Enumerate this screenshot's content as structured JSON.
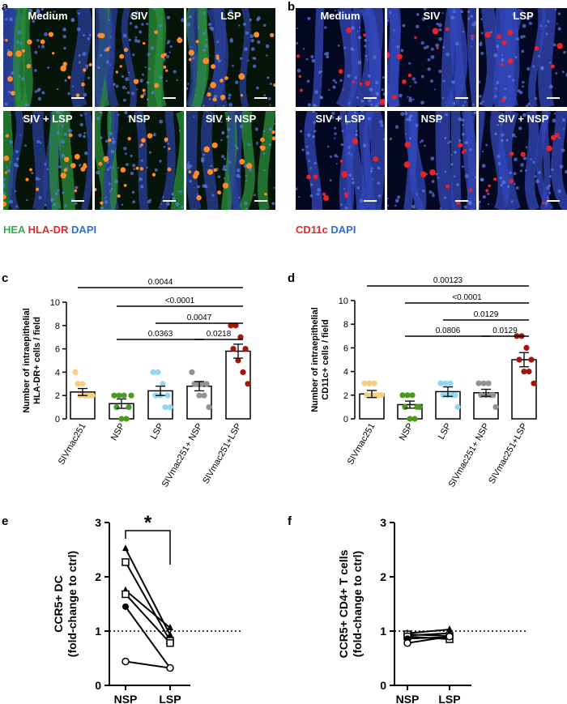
{
  "panels": {
    "a": {
      "letter": "a",
      "images": [
        {
          "label": "Medium"
        },
        {
          "label": "SIV"
        },
        {
          "label": "LSP"
        },
        {
          "label": "SIV + LSP"
        },
        {
          "label": "NSP"
        },
        {
          "label": "SIV + NSP"
        }
      ],
      "legend": [
        {
          "text": "HEA",
          "color": "#2bb34a"
        },
        {
          "text": "HLA-DR",
          "color": "#e8232b"
        },
        {
          "text": "DAPI",
          "color": "#2c6fd6"
        }
      ]
    },
    "b": {
      "letter": "b",
      "images": [
        {
          "label": "Medium"
        },
        {
          "label": "SIV"
        },
        {
          "label": "LSP"
        },
        {
          "label": "SIV + LSP"
        },
        {
          "label": "NSP"
        },
        {
          "label": "SIV + NSP"
        }
      ],
      "legend": [
        {
          "text": "CD11c",
          "color": "#e8232b"
        },
        {
          "text": "DAPI",
          "color": "#2c6fd6"
        }
      ]
    },
    "c": {
      "letter": "c"
    },
    "d": {
      "letter": "d"
    },
    "e": {
      "letter": "e"
    },
    "f": {
      "letter": "f"
    }
  },
  "chart_data": [
    {
      "id": "c",
      "type": "bar",
      "categories": [
        "SIVmac251",
        "NSP",
        "LSP",
        "SIVmac251+ NSP",
        "SIVmac251+LSP"
      ],
      "values": [
        2.3,
        1.3,
        2.4,
        2.8,
        5.8
      ],
      "sem": [
        0.3,
        0.4,
        0.4,
        0.4,
        0.6
      ],
      "points": [
        [
          4,
          2,
          2,
          2,
          3,
          3,
          2,
          2
        ],
        [
          2,
          2,
          2,
          1,
          1,
          0,
          0,
          2
        ],
        [
          4,
          4,
          3,
          2,
          2,
          2,
          1,
          1
        ],
        [
          4,
          3,
          3,
          3,
          3,
          2,
          2,
          1
        ],
        [
          8,
          8,
          7,
          6,
          6,
          5,
          4,
          3
        ]
      ],
      "point_colors": [
        "#f6cf7e",
        "#4a9a1e",
        "#8fd7f4",
        "#939393",
        "#a4160c"
      ],
      "ylabel": "Number of intraepithelial\nHLA-DR+ cells / field",
      "yticks": [
        0,
        2,
        4,
        6,
        8,
        10
      ],
      "ylim": [
        0,
        10
      ],
      "comparisons": [
        {
          "from": 0,
          "to": 4,
          "label": "0.0044"
        },
        {
          "from": 1,
          "to": 4,
          "label": "<0.0001"
        },
        {
          "from": 2,
          "to": 4,
          "label": "0.0047"
        },
        {
          "from": 1,
          "to": 3,
          "label": "0.0363"
        },
        {
          "from": 3,
          "to": 4,
          "label": "0.0218"
        }
      ]
    },
    {
      "id": "d",
      "type": "bar",
      "categories": [
        "SIVmac251",
        "NSP",
        "LSP",
        "SIVmac251+ NSP",
        "SIVmac251+LSP"
      ],
      "values": [
        2.1,
        1.2,
        2.3,
        2.2,
        5.0
      ],
      "sem": [
        0.3,
        0.3,
        0.4,
        0.3,
        0.6
      ],
      "points": [
        [
          3,
          3,
          3,
          2,
          2,
          2,
          2,
          2
        ],
        [
          2,
          2,
          2,
          1,
          1,
          0,
          0,
          1
        ],
        [
          3,
          3,
          3,
          2,
          2,
          2,
          2,
          1
        ],
        [
          3,
          3,
          3,
          2,
          2,
          2,
          2,
          1
        ],
        [
          7,
          7,
          6,
          5,
          5,
          4,
          4,
          3
        ]
      ],
      "point_colors": [
        "#f6cf7e",
        "#4a9a1e",
        "#8fd7f4",
        "#939393",
        "#a4160c"
      ],
      "ylabel": "Number of intraepithelial\nCD11c+ cells / field",
      "yticks": [
        0,
        2,
        4,
        6,
        8,
        10
      ],
      "ylim": [
        0,
        10
      ],
      "comparisons": [
        {
          "from": 0,
          "to": 4,
          "label": "0.00123"
        },
        {
          "from": 1,
          "to": 4,
          "label": "<0.0001"
        },
        {
          "from": 2,
          "to": 4,
          "label": "0.0129"
        },
        {
          "from": 1,
          "to": 3,
          "label": "0.0806"
        },
        {
          "from": 3,
          "to": 4,
          "label": "0.0129"
        }
      ]
    },
    {
      "id": "e",
      "type": "line",
      "categories": [
        "NSP",
        "LSP"
      ],
      "pairs": [
        {
          "marker": "triangle",
          "values": [
            2.52,
            0.93
          ]
        },
        {
          "marker": "square",
          "values": [
            2.27,
            0.82
          ]
        },
        {
          "marker": "triangle",
          "values": [
            1.75,
            1.06
          ]
        },
        {
          "marker": "square",
          "values": [
            1.68,
            0.78
          ]
        },
        {
          "marker": "circle-filled",
          "values": [
            1.45,
            0.32
          ]
        },
        {
          "marker": "circle-open",
          "values": [
            0.44,
            0.32
          ]
        }
      ],
      "ylabel": "CCR5+ DC\n(fold-change to ctrl)",
      "yticks": [
        0,
        1,
        2,
        3
      ],
      "ylim": [
        0,
        3
      ],
      "reference_line": 1,
      "significance": {
        "from": 0,
        "to": 1,
        "label": "*"
      }
    },
    {
      "id": "f",
      "type": "line",
      "categories": [
        "NSP",
        "LSP"
      ],
      "pairs": [
        {
          "marker": "triangle",
          "values": [
            0.96,
            1.03
          ]
        },
        {
          "marker": "square",
          "values": [
            0.94,
            0.91
          ]
        },
        {
          "marker": "triangle",
          "values": [
            0.92,
            0.96
          ]
        },
        {
          "marker": "square",
          "values": [
            0.9,
            0.85
          ]
        },
        {
          "marker": "circle-filled",
          "values": [
            0.86,
            0.89
          ]
        },
        {
          "marker": "circle-open",
          "values": [
            0.78,
            0.9
          ]
        }
      ],
      "ylabel": "CCR5+ CD4+ T cells\n(fold-change to ctrl)",
      "yticks": [
        0,
        1,
        2,
        3
      ],
      "ylim": [
        0,
        3
      ],
      "reference_line": 1
    }
  ]
}
